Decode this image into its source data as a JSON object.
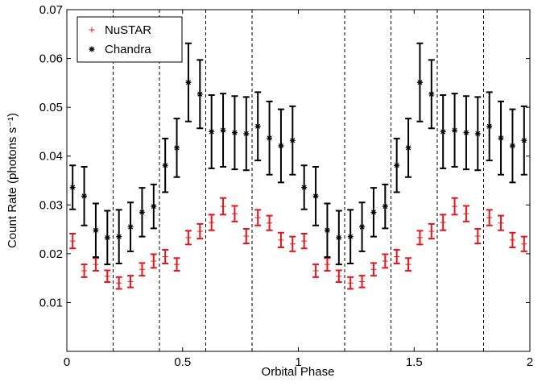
{
  "chart_data": {
    "type": "errorbar_scatter",
    "xlabel": "Orbital Phase",
    "ylabel": "Count Rate (photons s⁻¹)",
    "xlim": [
      0,
      2
    ],
    "ylim": [
      0,
      0.07
    ],
    "xticks": [
      0,
      0.5,
      1,
      1.5,
      2
    ],
    "yticks": [
      0.01,
      0.02,
      0.03,
      0.04,
      0.05,
      0.06,
      0.07
    ],
    "vlines": [
      0.2,
      0.4,
      0.6,
      0.8,
      1.2,
      1.4,
      1.6,
      1.8
    ],
    "legend": "upper left",
    "x": [
      0.025,
      0.075,
      0.125,
      0.175,
      0.225,
      0.275,
      0.325,
      0.375,
      0.425,
      0.475,
      0.525,
      0.575,
      0.625,
      0.675,
      0.725,
      0.775,
      0.825,
      0.875,
      0.925,
      0.975,
      1.025,
      1.075,
      1.125,
      1.175,
      1.225,
      1.275,
      1.325,
      1.375,
      1.425,
      1.475,
      1.525,
      1.575,
      1.625,
      1.675,
      1.725,
      1.775,
      1.825,
      1.875,
      1.925,
      1.975
    ],
    "series": [
      {
        "name": "NuSTAR",
        "color": "#e8141a",
        "marker": "+",
        "values": [
          0.0226,
          0.0165,
          0.0178,
          0.0154,
          0.014,
          0.0143,
          0.0168,
          0.0185,
          0.0194,
          0.0178,
          0.0233,
          0.0246,
          0.0264,
          0.0297,
          0.0282,
          0.0236,
          0.0274,
          0.0263,
          0.0228,
          0.022,
          0.0226,
          0.0165,
          0.0178,
          0.0154,
          0.014,
          0.0143,
          0.0168,
          0.0185,
          0.0194,
          0.0178,
          0.0233,
          0.0246,
          0.0264,
          0.0297,
          0.0282,
          0.0236,
          0.0274,
          0.0263,
          0.0228,
          0.022
        ],
        "errors": [
          0.0015,
          0.0013,
          0.0013,
          0.0012,
          0.0012,
          0.0012,
          0.0013,
          0.0014,
          0.0014,
          0.0013,
          0.0014,
          0.0015,
          0.0016,
          0.0017,
          0.0016,
          0.0015,
          0.0016,
          0.0015,
          0.0015,
          0.0015,
          0.0015,
          0.0013,
          0.0013,
          0.0012,
          0.0012,
          0.0012,
          0.0013,
          0.0014,
          0.0014,
          0.0013,
          0.0014,
          0.0015,
          0.0016,
          0.0017,
          0.0016,
          0.0015,
          0.0016,
          0.0015,
          0.0015,
          0.0015
        ]
      },
      {
        "name": "Chandra",
        "color": "#000000",
        "marker": "*",
        "values": [
          0.0336,
          0.0318,
          0.0248,
          0.0233,
          0.0235,
          0.0255,
          0.0285,
          0.0297,
          0.0381,
          0.0417,
          0.0551,
          0.0527,
          0.045,
          0.0453,
          0.0448,
          0.0446,
          0.0461,
          0.0437,
          0.0421,
          0.0432,
          0.0336,
          0.0318,
          0.0248,
          0.0233,
          0.0235,
          0.0255,
          0.0285,
          0.0297,
          0.0381,
          0.0417,
          0.0551,
          0.0527,
          0.045,
          0.0453,
          0.0448,
          0.0446,
          0.0461,
          0.0437,
          0.0421,
          0.0432
        ],
        "errors": [
          0.0045,
          0.006,
          0.0055,
          0.0055,
          0.0055,
          0.005,
          0.005,
          0.0045,
          0.0055,
          0.006,
          0.008,
          0.007,
          0.0075,
          0.0075,
          0.0075,
          0.0075,
          0.007,
          0.0075,
          0.0075,
          0.007,
          0.0045,
          0.006,
          0.0055,
          0.0055,
          0.0055,
          0.005,
          0.005,
          0.0045,
          0.0055,
          0.006,
          0.008,
          0.007,
          0.0075,
          0.0075,
          0.0075,
          0.0075,
          0.007,
          0.0075,
          0.0075,
          0.007
        ]
      }
    ]
  }
}
